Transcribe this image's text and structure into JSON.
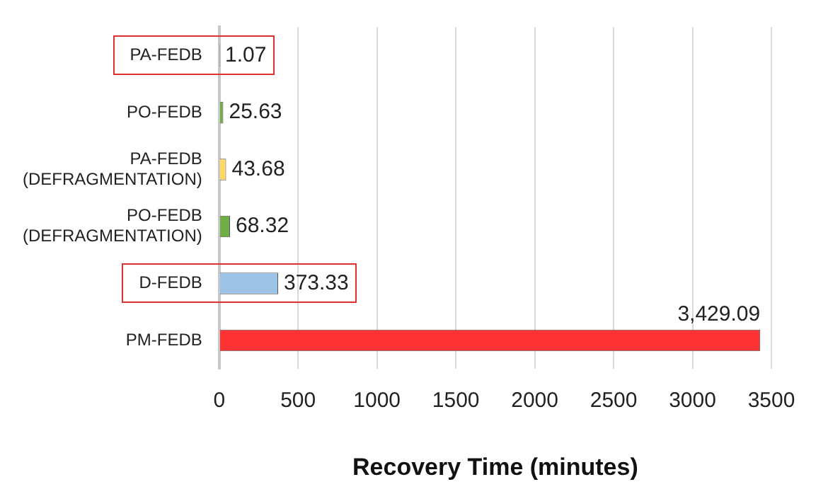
{
  "chart_data": {
    "type": "bar",
    "orientation": "horizontal",
    "xlabel": "Recovery Time (minutes)",
    "categories": [
      "PA-FEDB",
      "PO-FEDB",
      "PA-FEDB (DEFRAGMENTATION)",
      "PO-FEDB (DEFRAGMENTATION)",
      "D-FEDB",
      "PM-FEDB"
    ],
    "values": [
      1.07,
      25.63,
      43.68,
      68.32,
      373.33,
      3429.09
    ],
    "colors": [
      "#a6a6a6",
      "#70ad47",
      "#ffd966",
      "#70ad47",
      "#9dc3e6",
      "#ff3333"
    ],
    "value_labels": [
      "1.07",
      "25.63",
      "43.68",
      "68.32",
      "373.33",
      "3,429.09"
    ],
    "xlim": [
      0,
      3500
    ],
    "xticks": [
      0,
      500,
      1000,
      1500,
      2000,
      2500,
      3000,
      3500
    ],
    "grid": "x",
    "legend": false
  }
}
